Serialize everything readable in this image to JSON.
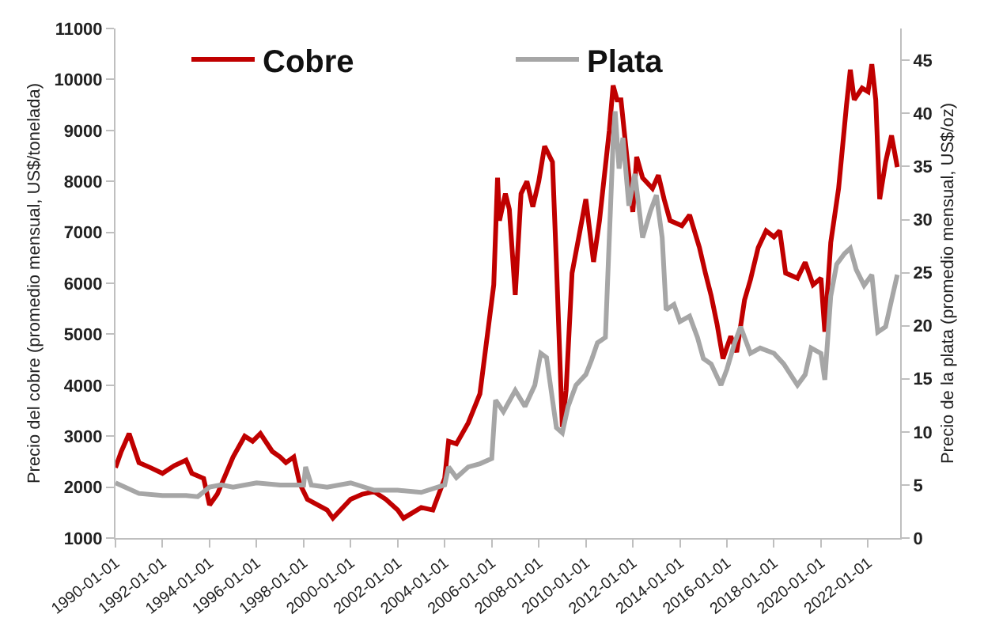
{
  "chart_data": {
    "type": "line",
    "ylabel": "Precio del cobre (promedio mensual, US$/tonelada)",
    "y2label": "Precio de la plata (promedio mensual, US$/oz)",
    "xlim": [
      "1990-01-01",
      "2023-05-15"
    ],
    "xticks": [
      "1990-01-01",
      "1992-01-01",
      "1994-01-01",
      "1996-01-01",
      "1998-01-01",
      "2000-01-01",
      "2002-01-01",
      "2004-01-01",
      "2006-01-01",
      "2008-01-01",
      "2010-01-01",
      "2012-01-01",
      "2014-01-01",
      "2016-01-01",
      "2018-01-01",
      "2020-01-01",
      "2022-01-01"
    ],
    "ylim": [
      1000,
      11000
    ],
    "yticks": [
      1000,
      2000,
      3000,
      4000,
      5000,
      6000,
      7000,
      8000,
      9000,
      10000,
      11000
    ],
    "y2lim": [
      0,
      48
    ],
    "y2ticks": [
      0,
      5,
      10,
      15,
      20,
      25,
      30,
      35,
      40,
      45
    ],
    "grid": false,
    "legend": "top",
    "marker": "none",
    "line_style": "solid",
    "series": [
      {
        "name": "Cobre",
        "color": "#c00000",
        "x": [
          "1990-01",
          "1990-04",
          "1990-08",
          "1991-01",
          "1991-07",
          "1992-01",
          "1992-07",
          "1993-01",
          "1993-04",
          "1993-10",
          "1994-01",
          "1994-05",
          "1995-01",
          "1995-07",
          "1995-11",
          "1996-03",
          "1996-09",
          "1997-01",
          "1997-04",
          "1997-08",
          "1997-11",
          "1998-03",
          "1999-01",
          "1999-04",
          "2000-01",
          "2000-07",
          "2001-01",
          "2001-07",
          "2002-01",
          "2002-04",
          "2003-01",
          "2003-07",
          "2004-01",
          "2004-03",
          "2004-07",
          "2005-01",
          "2005-07",
          "2006-02",
          "2006-04",
          "2006-05",
          "2006-08",
          "2006-10",
          "2007-01",
          "2007-04",
          "2007-07",
          "2007-10",
          "2008-01",
          "2008-04",
          "2008-08",
          "2008-10",
          "2009-01",
          "2009-03",
          "2009-06",
          "2009-11",
          "2010-01",
          "2010-05",
          "2010-08",
          "2011-01",
          "2011-03",
          "2011-05",
          "2011-07",
          "2011-10",
          "2012-01",
          "2012-03",
          "2012-06",
          "2012-11",
          "2013-02",
          "2013-05",
          "2013-08",
          "2014-02",
          "2014-06",
          "2014-11",
          "2015-02",
          "2015-05",
          "2015-08",
          "2015-11",
          "2016-03",
          "2016-06",
          "2016-10",
          "2017-01",
          "2017-05",
          "2017-09",
          "2018-01",
          "2018-04",
          "2018-07",
          "2019-01",
          "2019-05",
          "2019-09",
          "2020-01",
          "2020-03",
          "2020-06",
          "2020-10",
          "2021-02",
          "2021-04",
          "2021-06",
          "2021-10",
          "2022-01",
          "2022-03",
          "2022-05",
          "2022-07",
          "2022-10",
          "2023-01",
          "2023-04"
        ],
        "values": [
          2380,
          2700,
          3050,
          2480,
          2380,
          2270,
          2420,
          2530,
          2270,
          2170,
          1650,
          1860,
          2590,
          3000,
          2900,
          3050,
          2700,
          2590,
          2480,
          2590,
          2070,
          1760,
          1550,
          1390,
          1760,
          1860,
          1910,
          1760,
          1550,
          1390,
          1600,
          1550,
          2170,
          2900,
          2850,
          3260,
          3830,
          5970,
          8070,
          7230,
          7760,
          7450,
          5770,
          7760,
          8000,
          7500,
          8000,
          8690,
          8380,
          6400,
          3180,
          3900,
          6200,
          7230,
          7650,
          6420,
          7230,
          9000,
          9880,
          9600,
          9600,
          8480,
          7400,
          8480,
          8070,
          7860,
          8120,
          7650,
          7230,
          7130,
          7340,
          6700,
          6200,
          5760,
          5200,
          4520,
          4960,
          4650,
          5670,
          6070,
          6700,
          7030,
          6910,
          7030,
          6200,
          6100,
          6410,
          5970,
          6100,
          5050,
          6800,
          7860,
          9500,
          10190,
          9600,
          9830,
          9760,
          10300,
          9600,
          7650,
          8380,
          8900,
          8280
        ]
      },
      {
        "name": "Plata",
        "color": "#a6a6a6",
        "axis": "y2",
        "x": [
          "1990-01",
          "1991-01",
          "1992-01",
          "1993-01",
          "1993-07",
          "1994-01",
          "1994-07",
          "1995-01",
          "1996-01",
          "1997-01",
          "1998-01",
          "1998-02",
          "1998-05",
          "1999-01",
          "2000-01",
          "2001-01",
          "2002-01",
          "2003-01",
          "2004-01",
          "2004-03",
          "2004-07",
          "2005-01",
          "2005-07",
          "2006-01",
          "2006-03",
          "2006-07",
          "2007-01",
          "2007-06",
          "2007-11",
          "2008-02",
          "2008-05",
          "2008-10",
          "2009-01",
          "2009-04",
          "2009-08",
          "2010-01",
          "2010-04",
          "2010-07",
          "2010-11",
          "2011-01",
          "2011-03",
          "2011-04",
          "2011-06",
          "2011-08",
          "2011-11",
          "2012-02",
          "2012-06",
          "2012-10",
          "2013-01",
          "2013-04",
          "2013-06",
          "2013-10",
          "2014-01",
          "2014-06",
          "2014-10",
          "2015-01",
          "2015-05",
          "2015-10",
          "2016-01",
          "2016-05",
          "2016-08",
          "2017-01",
          "2017-06",
          "2018-01",
          "2018-06",
          "2019-01",
          "2019-05",
          "2019-08",
          "2020-01",
          "2020-03",
          "2020-06",
          "2020-09",
          "2021-01",
          "2021-04",
          "2021-07",
          "2021-11",
          "2022-03",
          "2022-06",
          "2022-10",
          "2023-01",
          "2023-04"
        ],
        "values": [
          5.2,
          4.2,
          4.0,
          4.0,
          3.9,
          4.8,
          5.0,
          4.8,
          5.2,
          5.0,
          5.0,
          6.7,
          5.0,
          4.8,
          5.2,
          4.5,
          4.5,
          4.3,
          5.0,
          6.7,
          5.7,
          6.7,
          7.0,
          7.5,
          13.0,
          11.9,
          13.9,
          12.4,
          14.4,
          17.4,
          17.0,
          10.4,
          9.9,
          12.4,
          14.4,
          15.4,
          16.8,
          18.4,
          18.9,
          28.3,
          37.3,
          40.2,
          34.8,
          37.7,
          31.3,
          34.3,
          28.3,
          30.8,
          32.3,
          28.3,
          21.5,
          22.0,
          20.4,
          20.9,
          18.9,
          16.9,
          16.4,
          14.4,
          15.9,
          18.4,
          19.9,
          17.4,
          17.9,
          17.4,
          16.4,
          14.4,
          15.4,
          17.9,
          17.4,
          14.9,
          22.8,
          25.8,
          26.8,
          27.3,
          25.3,
          23.8,
          24.8,
          19.4,
          19.9,
          22.4,
          24.8
        ]
      }
    ]
  }
}
